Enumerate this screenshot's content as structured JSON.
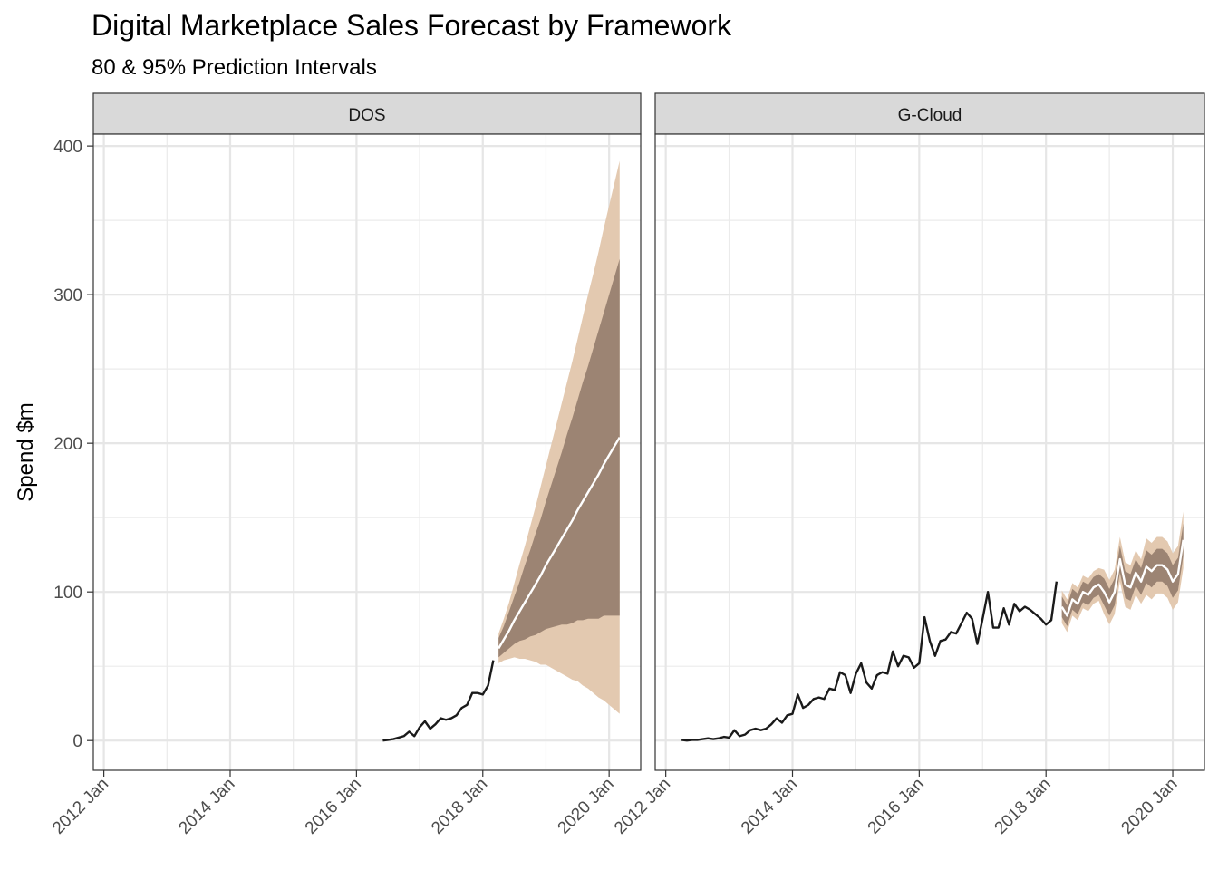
{
  "title": "Digital Marketplace Sales Forecast by Framework",
  "subtitle": "80 & 95% Prediction Intervals",
  "y_label": "Spend $m",
  "chart_data": [
    {
      "type": "line",
      "title": "DOS",
      "xlim": [
        "2011 Nov",
        "2020 Jul"
      ],
      "ylim": [
        -20,
        408
      ],
      "xticks": [
        "2012 Jan",
        "2014 Jan",
        "2016 Jan",
        "2018 Jan",
        "2020 Jan"
      ],
      "minor_xticks": [
        "2013 Jan",
        "2015 Jan",
        "2017 Jan",
        "2019 Jan"
      ],
      "yticks": [
        0,
        100,
        200,
        300,
        400
      ],
      "minor_yticks": [
        50,
        150,
        250,
        350
      ],
      "grid": true,
      "actual": {
        "color": "#1a1a1a",
        "x": [
          "2016 Jun",
          "2016 Jul",
          "2016 Aug",
          "2016 Sep",
          "2016 Oct",
          "2016 Nov",
          "2016 Dec",
          "2017 Jan",
          "2017 Feb",
          "2017 Mar",
          "2017 Apr",
          "2017 May",
          "2017 Jun",
          "2017 Jul",
          "2017 Aug",
          "2017 Sep",
          "2017 Oct",
          "2017 Nov",
          "2017 Dec",
          "2018 Jan",
          "2018 Feb",
          "2018 Mar"
        ],
        "values": [
          0,
          0.5,
          1,
          2,
          3,
          6,
          3,
          9,
          13,
          8,
          11,
          15,
          14,
          15,
          17,
          22,
          24,
          32,
          32,
          31,
          37,
          54
        ]
      },
      "forecast": {
        "color": "#ffffff",
        "color80": "#9c8473",
        "color95": "#e3c9b0",
        "x": [
          "2018 Apr",
          "2018 May",
          "2018 Jun",
          "2018 Jul",
          "2018 Aug",
          "2018 Sep",
          "2018 Oct",
          "2018 Nov",
          "2018 Dec",
          "2019 Jan",
          "2019 Feb",
          "2019 Mar",
          "2019 Apr",
          "2019 May",
          "2019 Jun",
          "2019 Jul",
          "2019 Aug",
          "2019 Sep",
          "2019 Oct",
          "2019 Nov",
          "2019 Dec",
          "2020 Jan",
          "2020 Feb",
          "2020 Mar"
        ],
        "mean": [
          62,
          68,
          74,
          81,
          87,
          93,
          99,
          105,
          111,
          118,
          124,
          130,
          136,
          142,
          148,
          155,
          161,
          167,
          173,
          179,
          186,
          192,
          198,
          204
        ],
        "hi80": [
          69,
          77,
          87,
          97,
          107,
          118,
          128,
          139,
          149,
          161,
          172,
          183,
          194,
          206,
          217,
          229,
          241,
          252,
          264,
          276,
          288,
          300,
          312,
          324
        ],
        "lo80": [
          56,
          59,
          62,
          65,
          67,
          68,
          70,
          71,
          73,
          75,
          76,
          77,
          78,
          78,
          79,
          81,
          81,
          82,
          82,
          82,
          84,
          84,
          84,
          84
        ],
        "hi95": [
          72,
          82,
          93,
          106,
          119,
          131,
          144,
          157,
          171,
          185,
          199,
          213,
          227,
          241,
          255,
          270,
          285,
          300,
          314,
          329,
          345,
          360,
          375,
          390
        ],
        "lo95": [
          52,
          54,
          55,
          56,
          55,
          55,
          54,
          53,
          51,
          51,
          49,
          47,
          45,
          43,
          41,
          40,
          37,
          35,
          32,
          29,
          27,
          24,
          21,
          18
        ]
      }
    },
    {
      "type": "line",
      "title": "G-Cloud",
      "xlim": [
        "2011 Nov",
        "2020 Jul"
      ],
      "ylim": [
        -20,
        408
      ],
      "xticks": [
        "2012 Jan",
        "2014 Jan",
        "2016 Jan",
        "2018 Jan",
        "2020 Jan"
      ],
      "minor_xticks": [
        "2013 Jan",
        "2015 Jan",
        "2017 Jan",
        "2019 Jan"
      ],
      "yticks": [
        0,
        100,
        200,
        300,
        400
      ],
      "minor_yticks": [
        50,
        150,
        250,
        350
      ],
      "grid": true,
      "actual": {
        "color": "#1a1a1a",
        "x": [
          "2012 Apr",
          "2012 May",
          "2012 Jun",
          "2012 Jul",
          "2012 Aug",
          "2012 Sep",
          "2012 Oct",
          "2012 Nov",
          "2012 Dec",
          "2013 Jan",
          "2013 Feb",
          "2013 Mar",
          "2013 Apr",
          "2013 May",
          "2013 Jun",
          "2013 Jul",
          "2013 Aug",
          "2013 Sep",
          "2013 Oct",
          "2013 Nov",
          "2013 Dec",
          "2014 Jan",
          "2014 Feb",
          "2014 Mar",
          "2014 Apr",
          "2014 May",
          "2014 Jun",
          "2014 Jul",
          "2014 Aug",
          "2014 Sep",
          "2014 Oct",
          "2014 Nov",
          "2014 Dec",
          "2015 Jan",
          "2015 Feb",
          "2015 Mar",
          "2015 Apr",
          "2015 May",
          "2015 Jun",
          "2015 Jul",
          "2015 Aug",
          "2015 Sep",
          "2015 Oct",
          "2015 Nov",
          "2015 Dec",
          "2016 Jan",
          "2016 Feb",
          "2016 Mar",
          "2016 Apr",
          "2016 May",
          "2016 Jun",
          "2016 Jul",
          "2016 Aug",
          "2016 Sep",
          "2016 Oct",
          "2016 Nov",
          "2016 Dec",
          "2017 Jan",
          "2017 Feb",
          "2017 Mar",
          "2017 Apr",
          "2017 May",
          "2017 Jun",
          "2017 Jul",
          "2017 Aug",
          "2017 Sep",
          "2017 Oct",
          "2017 Nov",
          "2017 Dec",
          "2018 Jan",
          "2018 Feb",
          "2018 Mar"
        ],
        "values": [
          0.5,
          0,
          0.5,
          0.5,
          1,
          1.5,
          1,
          1.5,
          2.5,
          2,
          7,
          3,
          4,
          7,
          8,
          7,
          8,
          11,
          15,
          12,
          17,
          18,
          31,
          22,
          24,
          28,
          29,
          28,
          35,
          34,
          46,
          44,
          32,
          45,
          52,
          39,
          35,
          44,
          46,
          45,
          60,
          50,
          57,
          56,
          49,
          52,
          83,
          67,
          57,
          67,
          68,
          73,
          72,
          79,
          86,
          82,
          65,
          82,
          100,
          76,
          76,
          89,
          78,
          92,
          87,
          90,
          88,
          85,
          82,
          78,
          81,
          107
        ]
      },
      "forecast": {
        "color": "#ffffff",
        "color80": "#9c8473",
        "color95": "#e3c9b0",
        "x": [
          "2018 Apr",
          "2018 May",
          "2018 Jun",
          "2018 Jul",
          "2018 Aug",
          "2018 Sep",
          "2018 Oct",
          "2018 Nov",
          "2018 Dec",
          "2019 Jan",
          "2019 Feb",
          "2019 Mar",
          "2019 Apr",
          "2019 May",
          "2019 Jun",
          "2019 Jul",
          "2019 Aug",
          "2019 Sep",
          "2019 Oct",
          "2019 Nov",
          "2019 Dec",
          "2020 Jan",
          "2020 Feb",
          "2020 Mar"
        ],
        "mean": [
          90,
          84,
          95,
          92,
          100,
          98,
          103,
          105,
          100,
          93,
          100,
          122,
          105,
          103,
          113,
          107,
          117,
          114,
          118,
          118,
          115,
          107,
          112,
          135
        ],
        "hi80": [
          97,
          91,
          102,
          99,
          107,
          105,
          110,
          112,
          109,
          102,
          109,
          131,
          114,
          112,
          122,
          116,
          128,
          125,
          129,
          129,
          126,
          118,
          123,
          146
        ],
        "lo80": [
          83,
          77,
          88,
          85,
          93,
          91,
          96,
          98,
          91,
          84,
          91,
          113,
          96,
          94,
          104,
          98,
          106,
          103,
          107,
          107,
          104,
          96,
          101,
          124
        ],
        "hi95": [
          101,
          95,
          106,
          103,
          111,
          109,
          114,
          116,
          115,
          108,
          115,
          137,
          120,
          118,
          128,
          122,
          136,
          133,
          137,
          137,
          134,
          126,
          131,
          154
        ],
        "lo95": [
          79,
          73,
          84,
          81,
          89,
          87,
          92,
          94,
          85,
          78,
          85,
          107,
          90,
          88,
          98,
          92,
          98,
          95,
          99,
          99,
          96,
          88,
          93,
          116
        ]
      }
    }
  ]
}
